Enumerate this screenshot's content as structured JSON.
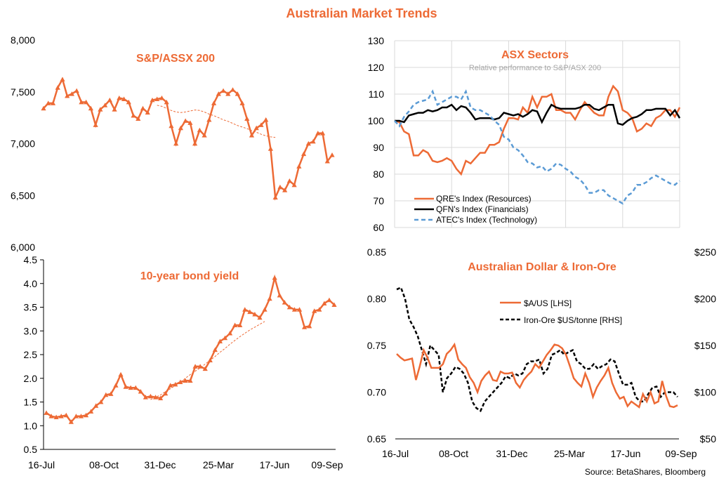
{
  "page": {
    "title": "Australian Market Trends",
    "source": "Source: BetaShares, Bloomberg",
    "colors": {
      "orange": "#ED6A35",
      "black": "#000000",
      "blue": "#5B9BD5",
      "grid": "#D9D9D9",
      "title": "#ED6A35"
    }
  },
  "chart_data": [
    {
      "id": "asx200",
      "type": "line",
      "title": "S&P/ASSX 200",
      "x_ticks": [
        "16-Jul",
        "08-Oct",
        "31-Dec",
        "25-Mar",
        "17-Jun",
        "09-Sep"
      ],
      "y_ticks": [
        "6,000",
        "6,500",
        "7,000",
        "7,500",
        "8,000"
      ],
      "ylim": [
        6000,
        8000
      ],
      "grid": false,
      "series": [
        {
          "style": "solid-triangle-markers",
          "values": [
            7340,
            7390,
            7390,
            7540,
            7620,
            7460,
            7480,
            7510,
            7400,
            7400,
            7340,
            7180,
            7330,
            7370,
            7420,
            7330,
            7440,
            7430,
            7400,
            7270,
            7240,
            7340,
            7300,
            7420,
            7430,
            7440,
            7400,
            7170,
            7000,
            7150,
            7220,
            7200,
            7000,
            7130,
            7080,
            7230,
            7390,
            7480,
            7510,
            7480,
            7520,
            7480,
            7390,
            7240,
            7080,
            7150,
            7180,
            7230,
            6950,
            6480,
            6580,
            6550,
            6640,
            6600,
            6780,
            6900,
            7000,
            7020,
            7100,
            7100,
            6830,
            6890
          ]
        },
        {
          "style": "dashed-thin",
          "start_index": 24,
          "values": [
            7370,
            7360,
            7340,
            7320,
            7305,
            7300,
            7305,
            7315,
            7325,
            7320,
            7305,
            7285,
            7270,
            7250,
            7230,
            7215,
            7195,
            7175,
            7160,
            7145,
            7125,
            7110,
            7090,
            7075,
            7065,
            7060
          ]
        }
      ]
    },
    {
      "id": "bond",
      "type": "line",
      "title": "10-year bond yield",
      "x_ticks": [
        "16-Jul",
        "08-Oct",
        "31-Dec",
        "25-Mar",
        "17-Jun",
        "09-Sep"
      ],
      "y_ticks": [
        "0.5",
        "1.0",
        "1.5",
        "2.0",
        "2.5",
        "3.0",
        "3.5",
        "4.0",
        "4.5"
      ],
      "ylim": [
        0.5,
        4.5
      ],
      "grid": false,
      "series": [
        {
          "style": "solid-triangle-markers",
          "values": [
            1.27,
            1.2,
            1.18,
            1.2,
            1.22,
            1.08,
            1.2,
            1.2,
            1.22,
            1.3,
            1.42,
            1.5,
            1.65,
            1.67,
            1.85,
            2.08,
            1.82,
            1.8,
            1.8,
            1.72,
            1.6,
            1.62,
            1.6,
            1.58,
            1.68,
            1.85,
            1.87,
            1.92,
            1.95,
            1.95,
            2.25,
            2.25,
            2.2,
            2.38,
            2.6,
            2.78,
            2.85,
            2.95,
            3.12,
            3.12,
            3.45,
            3.4,
            3.35,
            3.28,
            3.45,
            3.68,
            4.12,
            3.75,
            3.6,
            3.5,
            3.45,
            3.45,
            3.08,
            3.1,
            3.42,
            3.45,
            3.58,
            3.65,
            3.55
          ]
        },
        {
          "style": "dashed-thin",
          "start_index": 21,
          "values": [
            1.55,
            1.6,
            1.65,
            1.72,
            1.78,
            1.85,
            1.92,
            2.0,
            2.08,
            2.15,
            2.22,
            2.3,
            2.38,
            2.46,
            2.55,
            2.63,
            2.72,
            2.8,
            2.88,
            2.95,
            3.02,
            3.08,
            3.14,
            3.2
          ]
        }
      ]
    },
    {
      "id": "sectors",
      "type": "line",
      "title": "ASX Sectors",
      "subtitle": "Relative performance to S&P/ASX 200",
      "y_ticks": [
        "60",
        "70",
        "80",
        "90",
        "100",
        "110",
        "120",
        "130"
      ],
      "ylim": [
        60,
        130
      ],
      "grid": true,
      "legend_position": "bottom-left",
      "series": [
        {
          "name": "QRE's Index (Resources)",
          "style": "solid-orange",
          "values": [
            100,
            99.5,
            96,
            95,
            87,
            87,
            89,
            88,
            85,
            84.5,
            85,
            86,
            85,
            82,
            80,
            85,
            84,
            86,
            88,
            88,
            91,
            91,
            92,
            97,
            101,
            101,
            100.5,
            105,
            103,
            109,
            105,
            109,
            109,
            110,
            104,
            104,
            103,
            103,
            100.5,
            104,
            107,
            105,
            103,
            102,
            102,
            109,
            113,
            111,
            104,
            103,
            101,
            96,
            97,
            99,
            98,
            101,
            102,
            104,
            104,
            101.5,
            105
          ]
        },
        {
          "name": "QFN's Index (Financials)",
          "style": "solid-black",
          "values": [
            100,
            100,
            99.5,
            102,
            102.5,
            103,
            103,
            104,
            103.5,
            104,
            105,
            105,
            106,
            104,
            105.5,
            105,
            103,
            100.5,
            101,
            101,
            101,
            100.5,
            101,
            103,
            102.5,
            102,
            102.5,
            101.5,
            102.5,
            104,
            103.5,
            99.5,
            103,
            106,
            105,
            104.5,
            104.5,
            104.5,
            104.5,
            105,
            106,
            106,
            104.5,
            104,
            105,
            106,
            106,
            99,
            98.5,
            100,
            101,
            101.5,
            102.5,
            104,
            104,
            104.5,
            104.5,
            104.5,
            102,
            104,
            101
          ]
        },
        {
          "name": "ATEC's Index (Technology)",
          "style": "dashed-blue",
          "values": [
            100,
            98,
            101.5,
            103.5,
            106,
            107,
            107.5,
            108,
            111,
            106,
            107,
            108,
            109,
            109,
            108,
            111,
            105,
            104,
            104,
            103,
            102,
            100,
            98.5,
            94,
            93,
            90,
            89,
            87,
            84.5,
            84,
            82.5,
            83,
            81,
            82,
            84,
            83.5,
            82,
            81,
            79,
            78,
            76,
            73,
            73,
            74,
            74,
            72,
            71,
            70,
            69,
            72,
            73,
            76,
            76,
            77,
            78.5,
            79.5,
            78.5,
            77.5,
            76.5,
            76,
            77.5
          ]
        }
      ]
    },
    {
      "id": "aud_iron",
      "type": "line",
      "title": "Australian Dollar & Iron-Ore",
      "x_ticks": [
        "16-Jul",
        "08-Oct",
        "31-Dec",
        "25-Mar",
        "17-Jun",
        "09-Sep"
      ],
      "y_ticks_left": [
        "0.65",
        "0.70",
        "0.75",
        "0.80",
        "0.85"
      ],
      "y_ticks_right": [
        "$50",
        "$100",
        "$150",
        "$200",
        "$250"
      ],
      "ylim_left": [
        0.65,
        0.85
      ],
      "ylim_right": [
        50,
        250
      ],
      "grid": false,
      "series": [
        {
          "name": "$A/US [LHS]",
          "axis": "left",
          "style": "solid-orange",
          "values": [
            0.741,
            0.737,
            0.734,
            0.735,
            0.736,
            0.713,
            0.728,
            0.745,
            0.737,
            0.726,
            0.726,
            0.726,
            0.73,
            0.741,
            0.745,
            0.751,
            0.735,
            0.73,
            0.726,
            0.716,
            0.71,
            0.7,
            0.712,
            0.718,
            0.722,
            0.713,
            0.712,
            0.722,
            0.72,
            0.72,
            0.721,
            0.71,
            0.705,
            0.713,
            0.718,
            0.722,
            0.73,
            0.726,
            0.733,
            0.74,
            0.745,
            0.751,
            0.75,
            0.747,
            0.74,
            0.728,
            0.715,
            0.71,
            0.706,
            0.72,
            0.71,
            0.695,
            0.705,
            0.712,
            0.718,
            0.726,
            0.71,
            0.7,
            0.693,
            0.695,
            0.685,
            0.69,
            0.687,
            0.684,
            0.698,
            0.69,
            0.7,
            0.688,
            0.69,
            0.712,
            0.696,
            0.685,
            0.684,
            0.686
          ]
        },
        {
          "name": "Iron-Ore $US/tonne [RHS]",
          "axis": "right",
          "style": "dashed-black",
          "values": [
            210,
            212,
            200,
            178,
            170,
            160,
            145,
            130,
            150,
            145,
            140,
            100,
            115,
            120,
            127,
            125,
            120,
            110,
            90,
            83,
            80,
            90,
            95,
            100,
            105,
            110,
            117,
            115,
            120,
            118,
            120,
            130,
            133,
            133,
            135,
            120,
            125,
            140,
            142,
            145,
            140,
            143,
            145,
            133,
            130,
            125,
            125,
            130,
            125,
            128,
            130,
            135,
            133,
            120,
            108,
            108,
            110,
            95,
            90,
            90,
            98,
            105,
            106,
            95,
            100,
            100,
            100,
            95
          ]
        }
      ]
    }
  ]
}
